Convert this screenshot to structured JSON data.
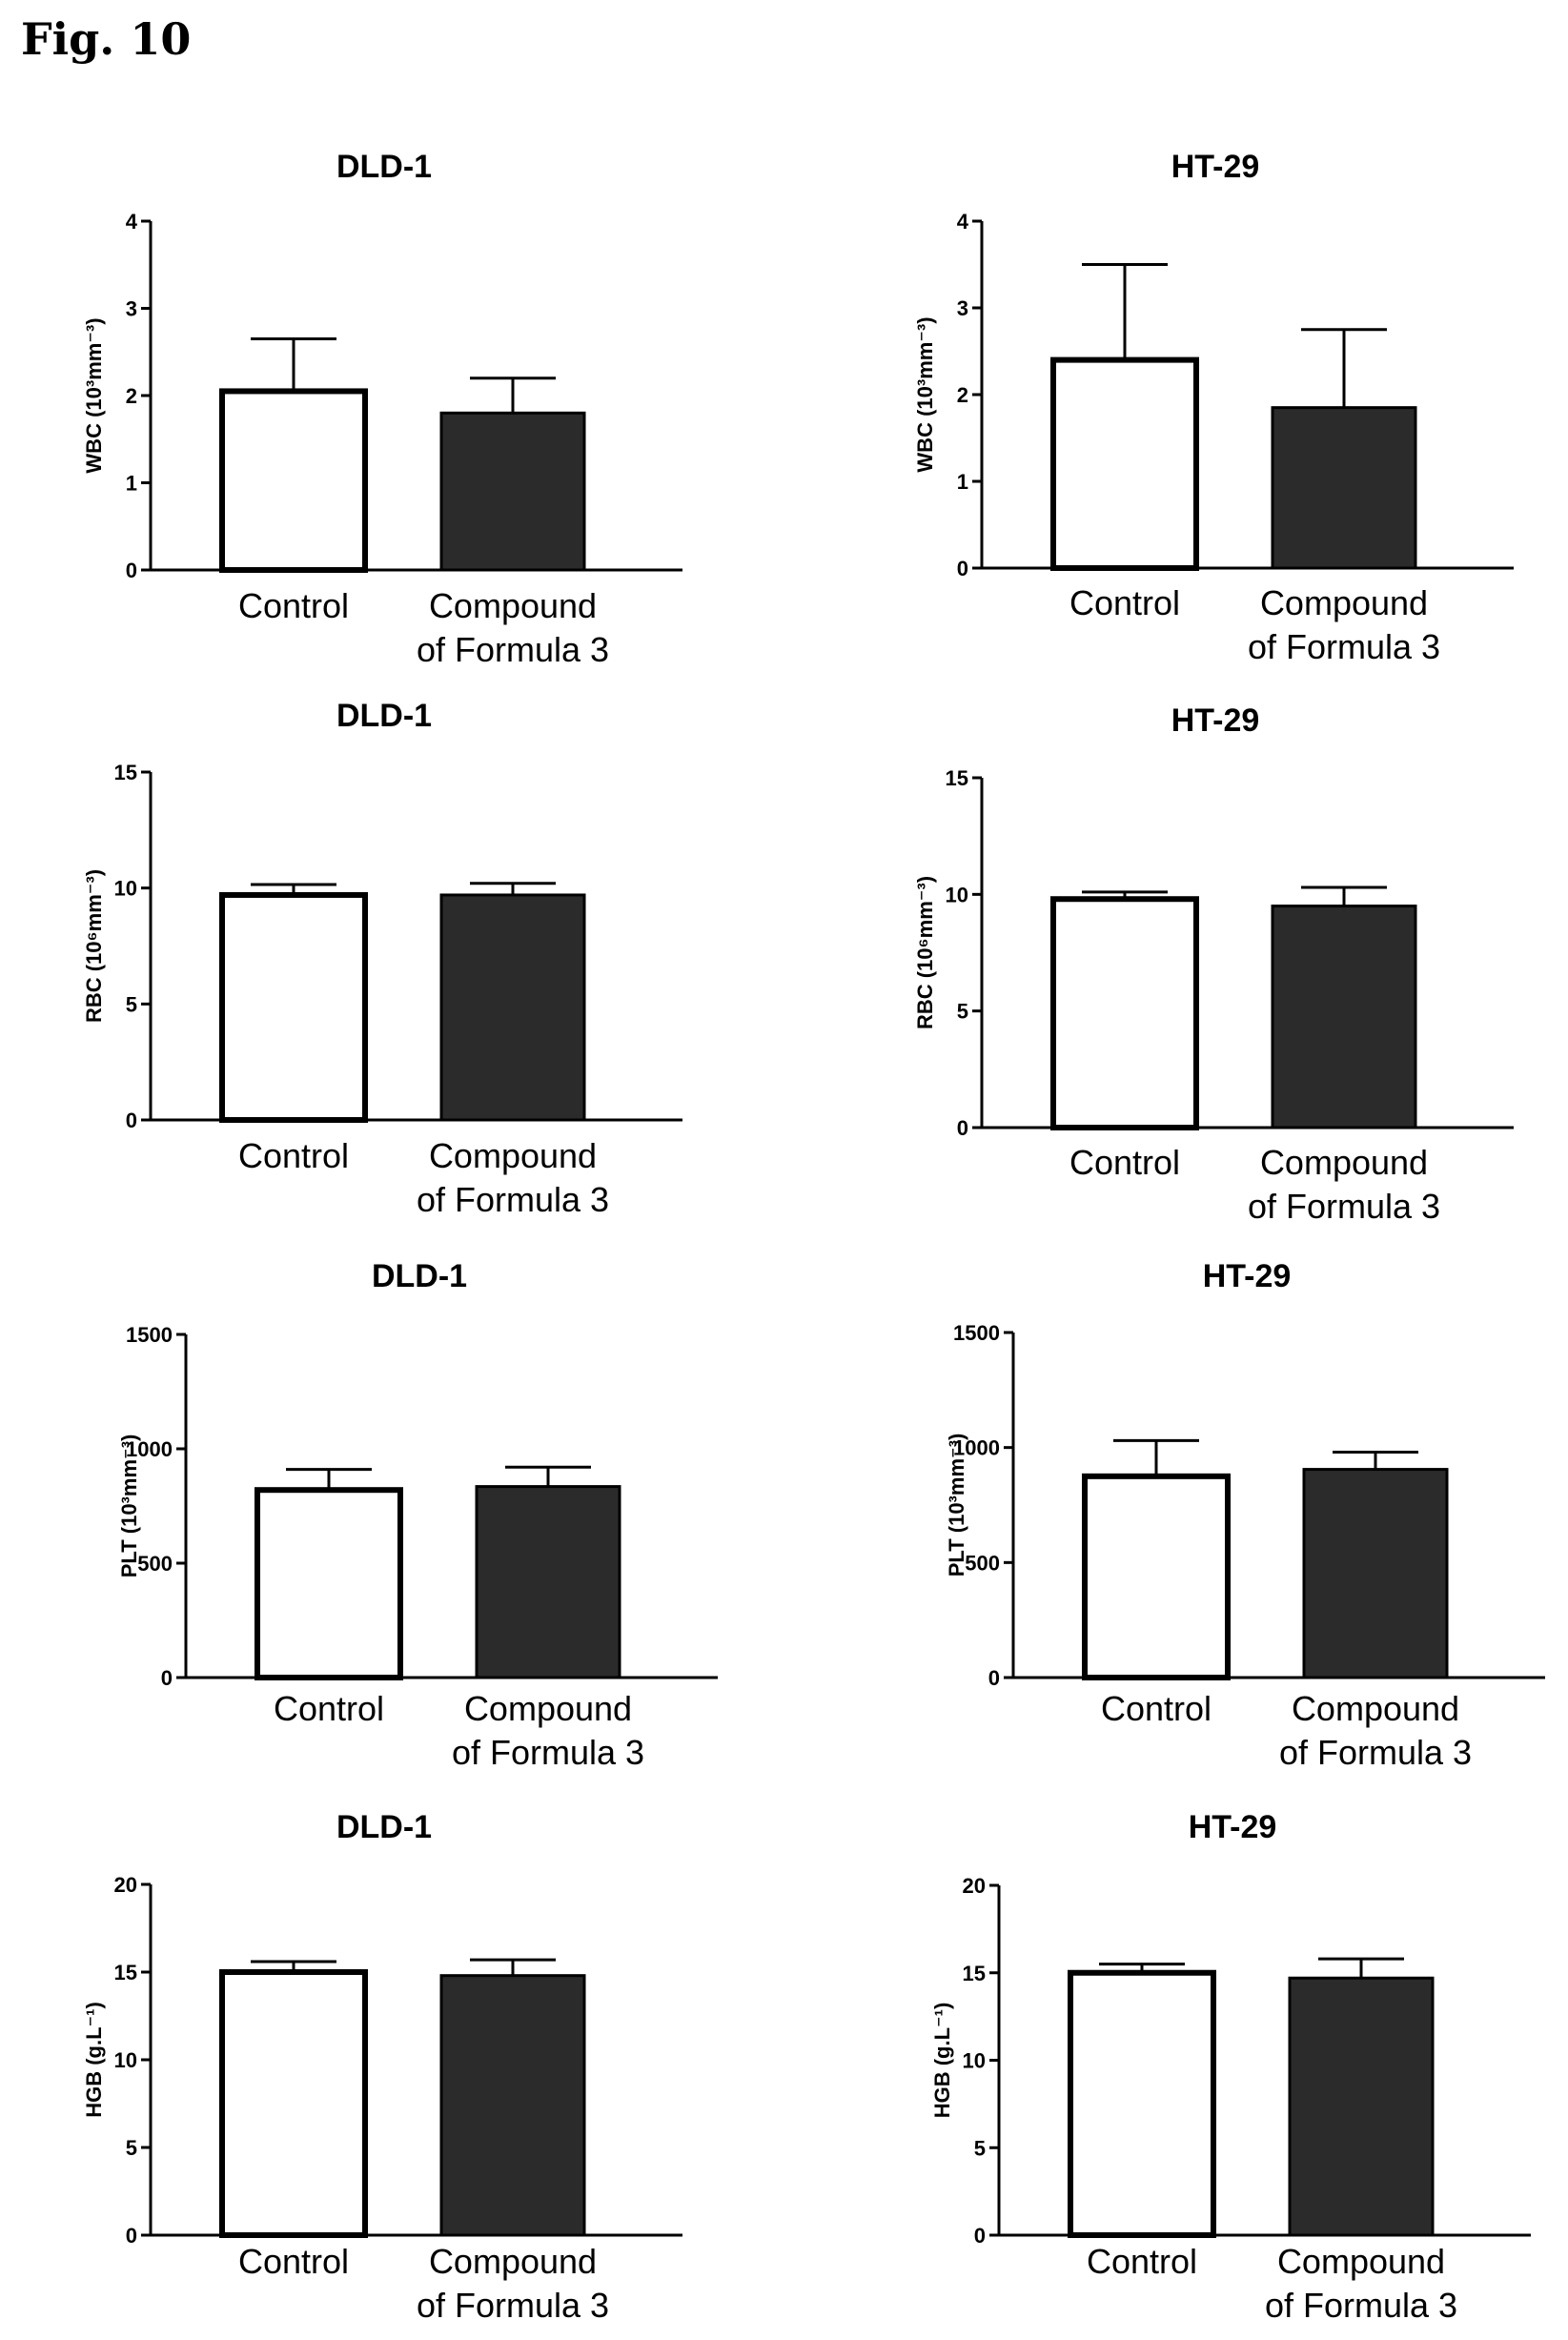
{
  "figure": {
    "label": "Fig. 10"
  },
  "colors": {
    "control": "#ffffff",
    "compound": "#2b2b2b",
    "axis": "#000000"
  },
  "chart_data": [
    {
      "type": "bar",
      "title": "DLD-1",
      "ylabel": "WBC (10³mm⁻³)",
      "categories": [
        "Control",
        "Compound of Formula 3"
      ],
      "values": [
        2.05,
        1.8
      ],
      "errors": [
        0.6,
        0.4
      ],
      "ylim": [
        0,
        4
      ],
      "yticks": [
        "0",
        "1",
        "2",
        "3",
        "4"
      ],
      "grid": false
    },
    {
      "type": "bar",
      "title": "HT-29",
      "ylabel": "WBC (10³mm⁻³)",
      "categories": [
        "Control",
        "Compound of Formula 3"
      ],
      "values": [
        2.4,
        1.85
      ],
      "errors": [
        1.1,
        0.9
      ],
      "ylim": [
        0,
        4
      ],
      "yticks": [
        "0",
        "1",
        "2",
        "3",
        "4"
      ],
      "grid": false
    },
    {
      "type": "bar",
      "title": "DLD-1",
      "ylabel": "RBC (10⁶mm⁻³)",
      "categories": [
        "Control",
        "Compound of Formula 3"
      ],
      "values": [
        9.7,
        9.7
      ],
      "errors": [
        0.45,
        0.5
      ],
      "ylim": [
        0,
        15
      ],
      "yticks": [
        "0",
        "5",
        "10",
        "15"
      ],
      "grid": false
    },
    {
      "type": "bar",
      "title": "HT-29",
      "ylabel": "RBC (10⁶mm⁻³)",
      "categories": [
        "Control",
        "Compound of Formula 3"
      ],
      "values": [
        9.8,
        9.5
      ],
      "errors": [
        0.3,
        0.8
      ],
      "ylim": [
        0,
        15
      ],
      "yticks": [
        "0",
        "5",
        "10",
        "15"
      ],
      "grid": false
    },
    {
      "type": "bar",
      "title": "DLD-1",
      "ylabel": "PLT (10³mm⁻³)",
      "categories": [
        "Control",
        "Compound of Formula 3"
      ],
      "values": [
        820,
        835
      ],
      "errors": [
        90,
        85
      ],
      "ylim": [
        0,
        1500
      ],
      "yticks": [
        "0",
        "500",
        "1000",
        "1500"
      ],
      "grid": false
    },
    {
      "type": "bar",
      "title": "HT-29",
      "ylabel": "PLT (10³mm⁻³)",
      "categories": [
        "Control",
        "Compound of Formula 3"
      ],
      "values": [
        875,
        905
      ],
      "errors": [
        155,
        75
      ],
      "ylim": [
        0,
        1500
      ],
      "yticks": [
        "0",
        "500",
        "1000",
        "1500"
      ],
      "grid": false
    },
    {
      "type": "bar",
      "title": "DLD-1",
      "ylabel": "HGB (g.L⁻¹)",
      "categories": [
        "Control",
        "Compound of Formula 3"
      ],
      "values": [
        15.0,
        14.8
      ],
      "errors": [
        0.6,
        0.9
      ],
      "ylim": [
        0,
        20
      ],
      "yticks": [
        "0",
        "5",
        "10",
        "15",
        "20"
      ],
      "grid": false
    },
    {
      "type": "bar",
      "title": "HT-29",
      "ylabel": "HGB (g.L⁻¹)",
      "categories": [
        "Control",
        "Compound of Formula 3"
      ],
      "values": [
        15.0,
        14.7
      ],
      "errors": [
        0.5,
        1.1
      ],
      "ylim": [
        0,
        20
      ],
      "yticks": [
        "0",
        "5",
        "10",
        "15",
        "20"
      ],
      "grid": false
    }
  ]
}
